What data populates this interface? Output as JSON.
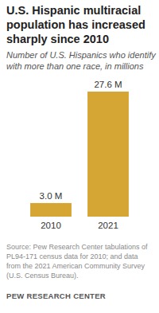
{
  "chart_data": {
    "type": "bar",
    "title": "U.S. Hispanic multiracial population has increased sharply since 2010",
    "subtitle": "Number of U.S. Hispanics who identify with more than one race, in millions",
    "categories": [
      "2010",
      "2021"
    ],
    "values": [
      3.0,
      27.6
    ],
    "value_labels": [
      "3.0 M",
      "27.6 M"
    ],
    "color": "#d6a634",
    "ylim": [
      0,
      27.6
    ],
    "grid": false,
    "data_labels": true,
    "tick_labels": "x",
    "source": "Source: Pew Research Center tabulations of PL94-171 census data for 2010; and data from the 2021 American Community Survey (U.S. Census Bureau).",
    "credit": "PEW RESEARCH CENTER"
  }
}
